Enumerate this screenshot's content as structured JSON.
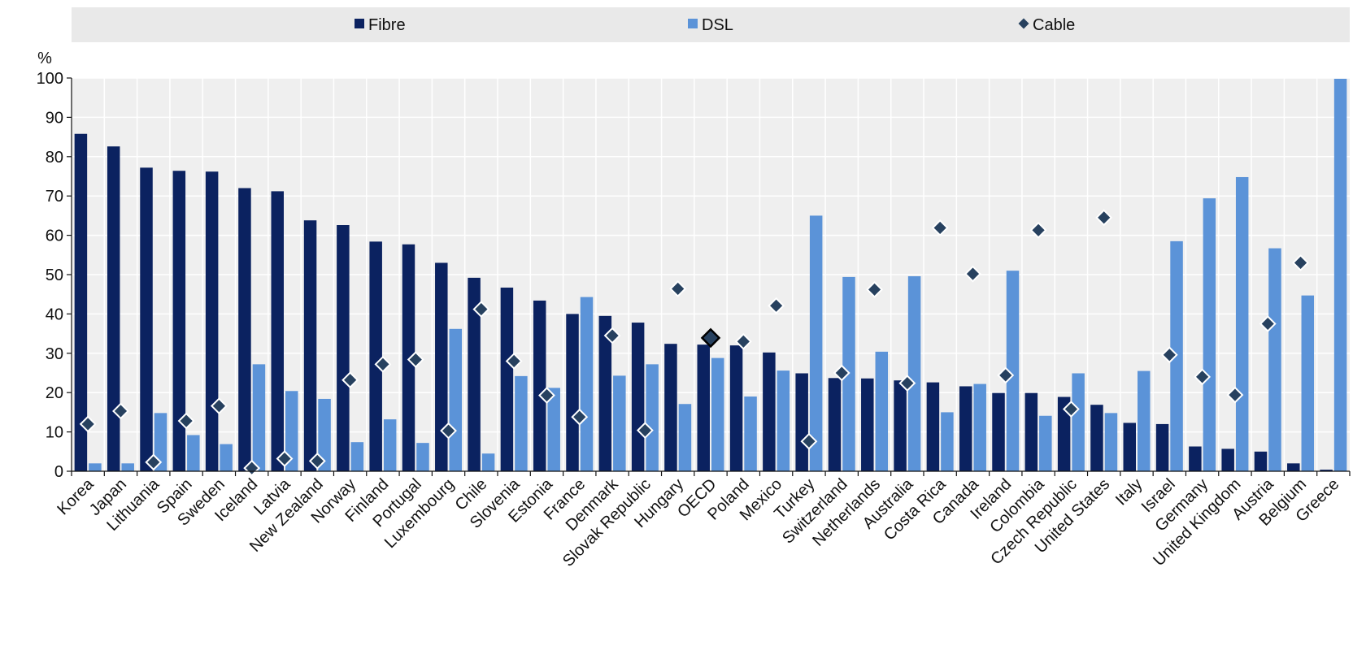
{
  "chart_data": {
    "type": "bar",
    "title": "",
    "xlabel": "",
    "ylabel": "%",
    "ylim": [
      0,
      100
    ],
    "yticks": [
      0,
      10,
      20,
      30,
      40,
      50,
      60,
      70,
      80,
      90,
      100
    ],
    "grid": true,
    "legend_position": "top",
    "colors": {
      "Fibre": "#0b2260",
      "DSL": "#5b93d8",
      "Cable": "#27415f",
      "plot_background": "#efefef",
      "legend_background": "#e9e9e9"
    },
    "highlighted_category": "OECD",
    "categories": [
      "Korea",
      "Japan",
      "Lithuania",
      "Spain",
      "Sweden",
      "Iceland",
      "Latvia",
      "New Zealand",
      "Norway",
      "Finland",
      "Portugal",
      "Luxembourg",
      "Chile",
      "Slovenia",
      "Estonia",
      "France",
      "Denmark",
      "Slovak Republic",
      "Hungary",
      "OECD",
      "Poland",
      "Mexico",
      "Turkey",
      "Switzerland",
      "Netherlands",
      "Australia",
      "Costa Rica",
      "Canada",
      "Ireland",
      "Colombia",
      "Czech Republic",
      "United States",
      "Italy",
      "Israel",
      "Germany",
      "United Kingdom",
      "Austria",
      "Belgium",
      "Greece"
    ],
    "series": [
      {
        "name": "Fibre",
        "kind": "bar",
        "values": [
          85.8,
          82.6,
          77.2,
          76.4,
          76.2,
          72.0,
          71.2,
          63.8,
          62.6,
          58.4,
          57.7,
          53.0,
          49.2,
          46.7,
          43.4,
          40.0,
          39.5,
          37.8,
          32.4,
          32.2,
          32.0,
          30.2,
          24.9,
          23.7,
          23.6,
          23.1,
          22.6,
          21.6,
          19.9,
          19.9,
          18.9,
          16.9,
          12.3,
          12.0,
          6.3,
          5.7,
          5.0,
          2.0,
          0.4
        ]
      },
      {
        "name": "DSL",
        "kind": "bar",
        "values": [
          2.0,
          2.0,
          14.8,
          9.2,
          6.9,
          27.2,
          20.4,
          18.4,
          7.4,
          13.2,
          7.2,
          36.2,
          4.5,
          24.2,
          21.2,
          44.3,
          24.3,
          27.2,
          17.1,
          28.8,
          19.0,
          25.6,
          65.0,
          49.4,
          30.4,
          49.6,
          15.0,
          22.2,
          51.0,
          14.1,
          24.9,
          14.8,
          25.5,
          58.5,
          69.4,
          74.8,
          56.7,
          44.7,
          99.8
        ]
      },
      {
        "name": "Cable",
        "kind": "diamond",
        "values": [
          12.0,
          15.3,
          2.3,
          12.8,
          16.6,
          0.8,
          3.2,
          2.6,
          23.2,
          27.2,
          28.4,
          10.3,
          41.2,
          28.0,
          19.3,
          13.8,
          34.5,
          10.4,
          46.4,
          33.9,
          33.0,
          42.1,
          7.6,
          25.0,
          46.2,
          22.4,
          61.9,
          50.2,
          24.4,
          61.3,
          15.8,
          64.5,
          null,
          29.6,
          24.0,
          19.4,
          37.5,
          53.0,
          null
        ]
      }
    ]
  }
}
